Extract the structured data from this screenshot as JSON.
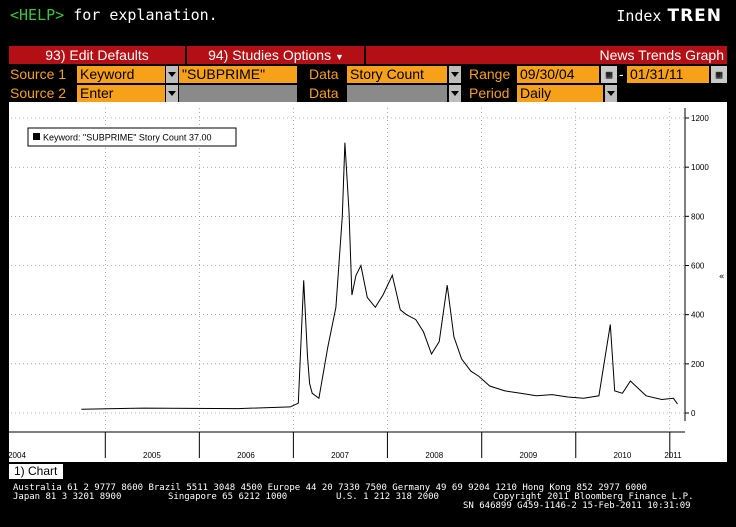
{
  "header": {
    "help_key": "<HELP>",
    "help_text": " for explanation.",
    "index_label": "Index",
    "function_code": "TREN"
  },
  "menu": {
    "edit_defaults": "93) Edit Defaults",
    "studies_options": "94) Studies Options",
    "title": "News Trends Graph"
  },
  "form": {
    "source1_label": "Source 1",
    "source1_type": "Keyword",
    "source1_value": "\"SUBPRIME\"",
    "data1_label": "Data",
    "data1_value": "Story Count",
    "range_label": "Range",
    "range_start": "09/30/04",
    "range_sep": "-",
    "range_end": "01/31/11",
    "source2_label": "Source 2",
    "source2_type": "Enter",
    "source2_value": "",
    "data2_label": "Data",
    "data2_value": "",
    "period_label": "Period",
    "period_value": "Daily"
  },
  "tabs": {
    "chart_tab": "1) Chart"
  },
  "footer": {
    "line1": "Australia 61 2 9777 8600 Brazil 5511 3048 4500 Europe 44 20 7330 7500 Germany 49 69 9204 1210 Hong Kong 852 2977 6000",
    "line2a": "Japan 81 3 3201 8900",
    "line2b": "Singapore 65 6212 1000",
    "line2c": "U.S. 1 212 318 2000",
    "line2d": "Copyright 2011 Bloomberg Finance L.P.",
    "line3": "SN 646899 G459-1146-2 15-Feb-2011 10:31:09"
  },
  "colors": {
    "accent_orange": "#f7a019",
    "menu_red": "#b40f14",
    "help_green": "#3ec23e"
  },
  "chart_data": {
    "type": "line",
    "legend": "Keyword: \"SUBPRIME\" Story Count 37.00",
    "legend_position": "top-left",
    "x_ticks_years": [
      "2004",
      "2005",
      "2006",
      "2007",
      "2008",
      "2009",
      "2010",
      "2011"
    ],
    "y_ticks": [
      "1200",
      "1000",
      "800",
      "600",
      "400",
      "200",
      "0"
    ],
    "ylim": [
      0,
      1200
    ],
    "y_axis_side": "right",
    "grid": "dotted",
    "series": [
      {
        "name": "Keyword: \"SUBPRIME\" Story Count",
        "x": [
          "2004-09-30",
          "2005-06-01",
          "2006-06-01",
          "2006-12-20",
          "2007-01-20",
          "2007-02-10",
          "2007-02-25",
          "2007-03-05",
          "2007-03-15",
          "2007-04-10",
          "2007-05-15",
          "2007-06-15",
          "2007-07-10",
          "2007-07-20",
          "2007-08-05",
          "2007-08-16",
          "2007-09-01",
          "2007-09-20",
          "2007-10-15",
          "2007-11-15",
          "2007-12-15",
          "2008-01-20",
          "2008-02-20",
          "2008-03-15",
          "2008-04-20",
          "2008-05-20",
          "2008-06-20",
          "2008-07-20",
          "2008-08-20",
          "2008-09-15",
          "2008-10-15",
          "2008-11-20",
          "2008-12-20",
          "2009-02-01",
          "2009-04-01",
          "2009-06-01",
          "2009-08-01",
          "2009-10-01",
          "2009-12-01",
          "2010-02-01",
          "2010-04-01",
          "2010-05-15",
          "2010-06-01",
          "2010-07-01",
          "2010-08-01",
          "2010-10-01",
          "2010-12-01",
          "2011-01-15",
          "2011-01-31"
        ],
        "values": [
          15,
          20,
          18,
          25,
          40,
          540,
          230,
          120,
          80,
          60,
          270,
          430,
          800,
          1100,
          820,
          480,
          560,
          600,
          470,
          430,
          480,
          560,
          420,
          400,
          380,
          330,
          240,
          290,
          520,
          310,
          220,
          170,
          150,
          110,
          90,
          80,
          70,
          75,
          65,
          60,
          70,
          360,
          90,
          80,
          130,
          70,
          55,
          60,
          37
        ]
      }
    ]
  }
}
